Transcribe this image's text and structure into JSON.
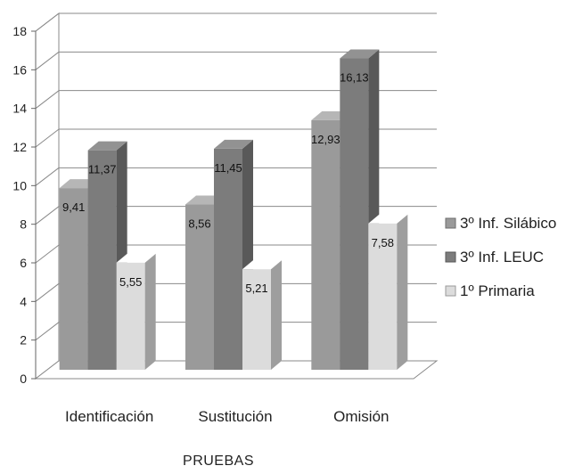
{
  "chart_data": {
    "type": "bar",
    "title": "",
    "xlabel": "PRUEBAS",
    "ylabel": "",
    "categories": [
      "Identificación",
      "Sustitución",
      "Omisión"
    ],
    "series": [
      {
        "name": "3º Inf. Silábico",
        "values": [
          9.41,
          8.56,
          12.93
        ],
        "labels": [
          "9,41",
          "8,56",
          "12,93"
        ],
        "color": "#9a9a9a"
      },
      {
        "name": "3º Inf. LEUC",
        "values": [
          11.37,
          11.45,
          16.13
        ],
        "labels": [
          "11,37",
          "11,45",
          "16,13"
        ],
        "color": "#7c7c7c"
      },
      {
        "name": "1º Primaria",
        "values": [
          5.55,
          5.21,
          7.58
        ],
        "labels": [
          "5,55",
          "5,21",
          "7,58"
        ],
        "color": "#dcdcdc"
      }
    ],
    "ylim": [
      0,
      18
    ],
    "yticks": [
      "0",
      "2",
      "4",
      "6",
      "8",
      "10",
      "12",
      "14",
      "16",
      "18"
    ],
    "grid": true,
    "legend_position": "right",
    "style": "3d-clustered-column"
  }
}
